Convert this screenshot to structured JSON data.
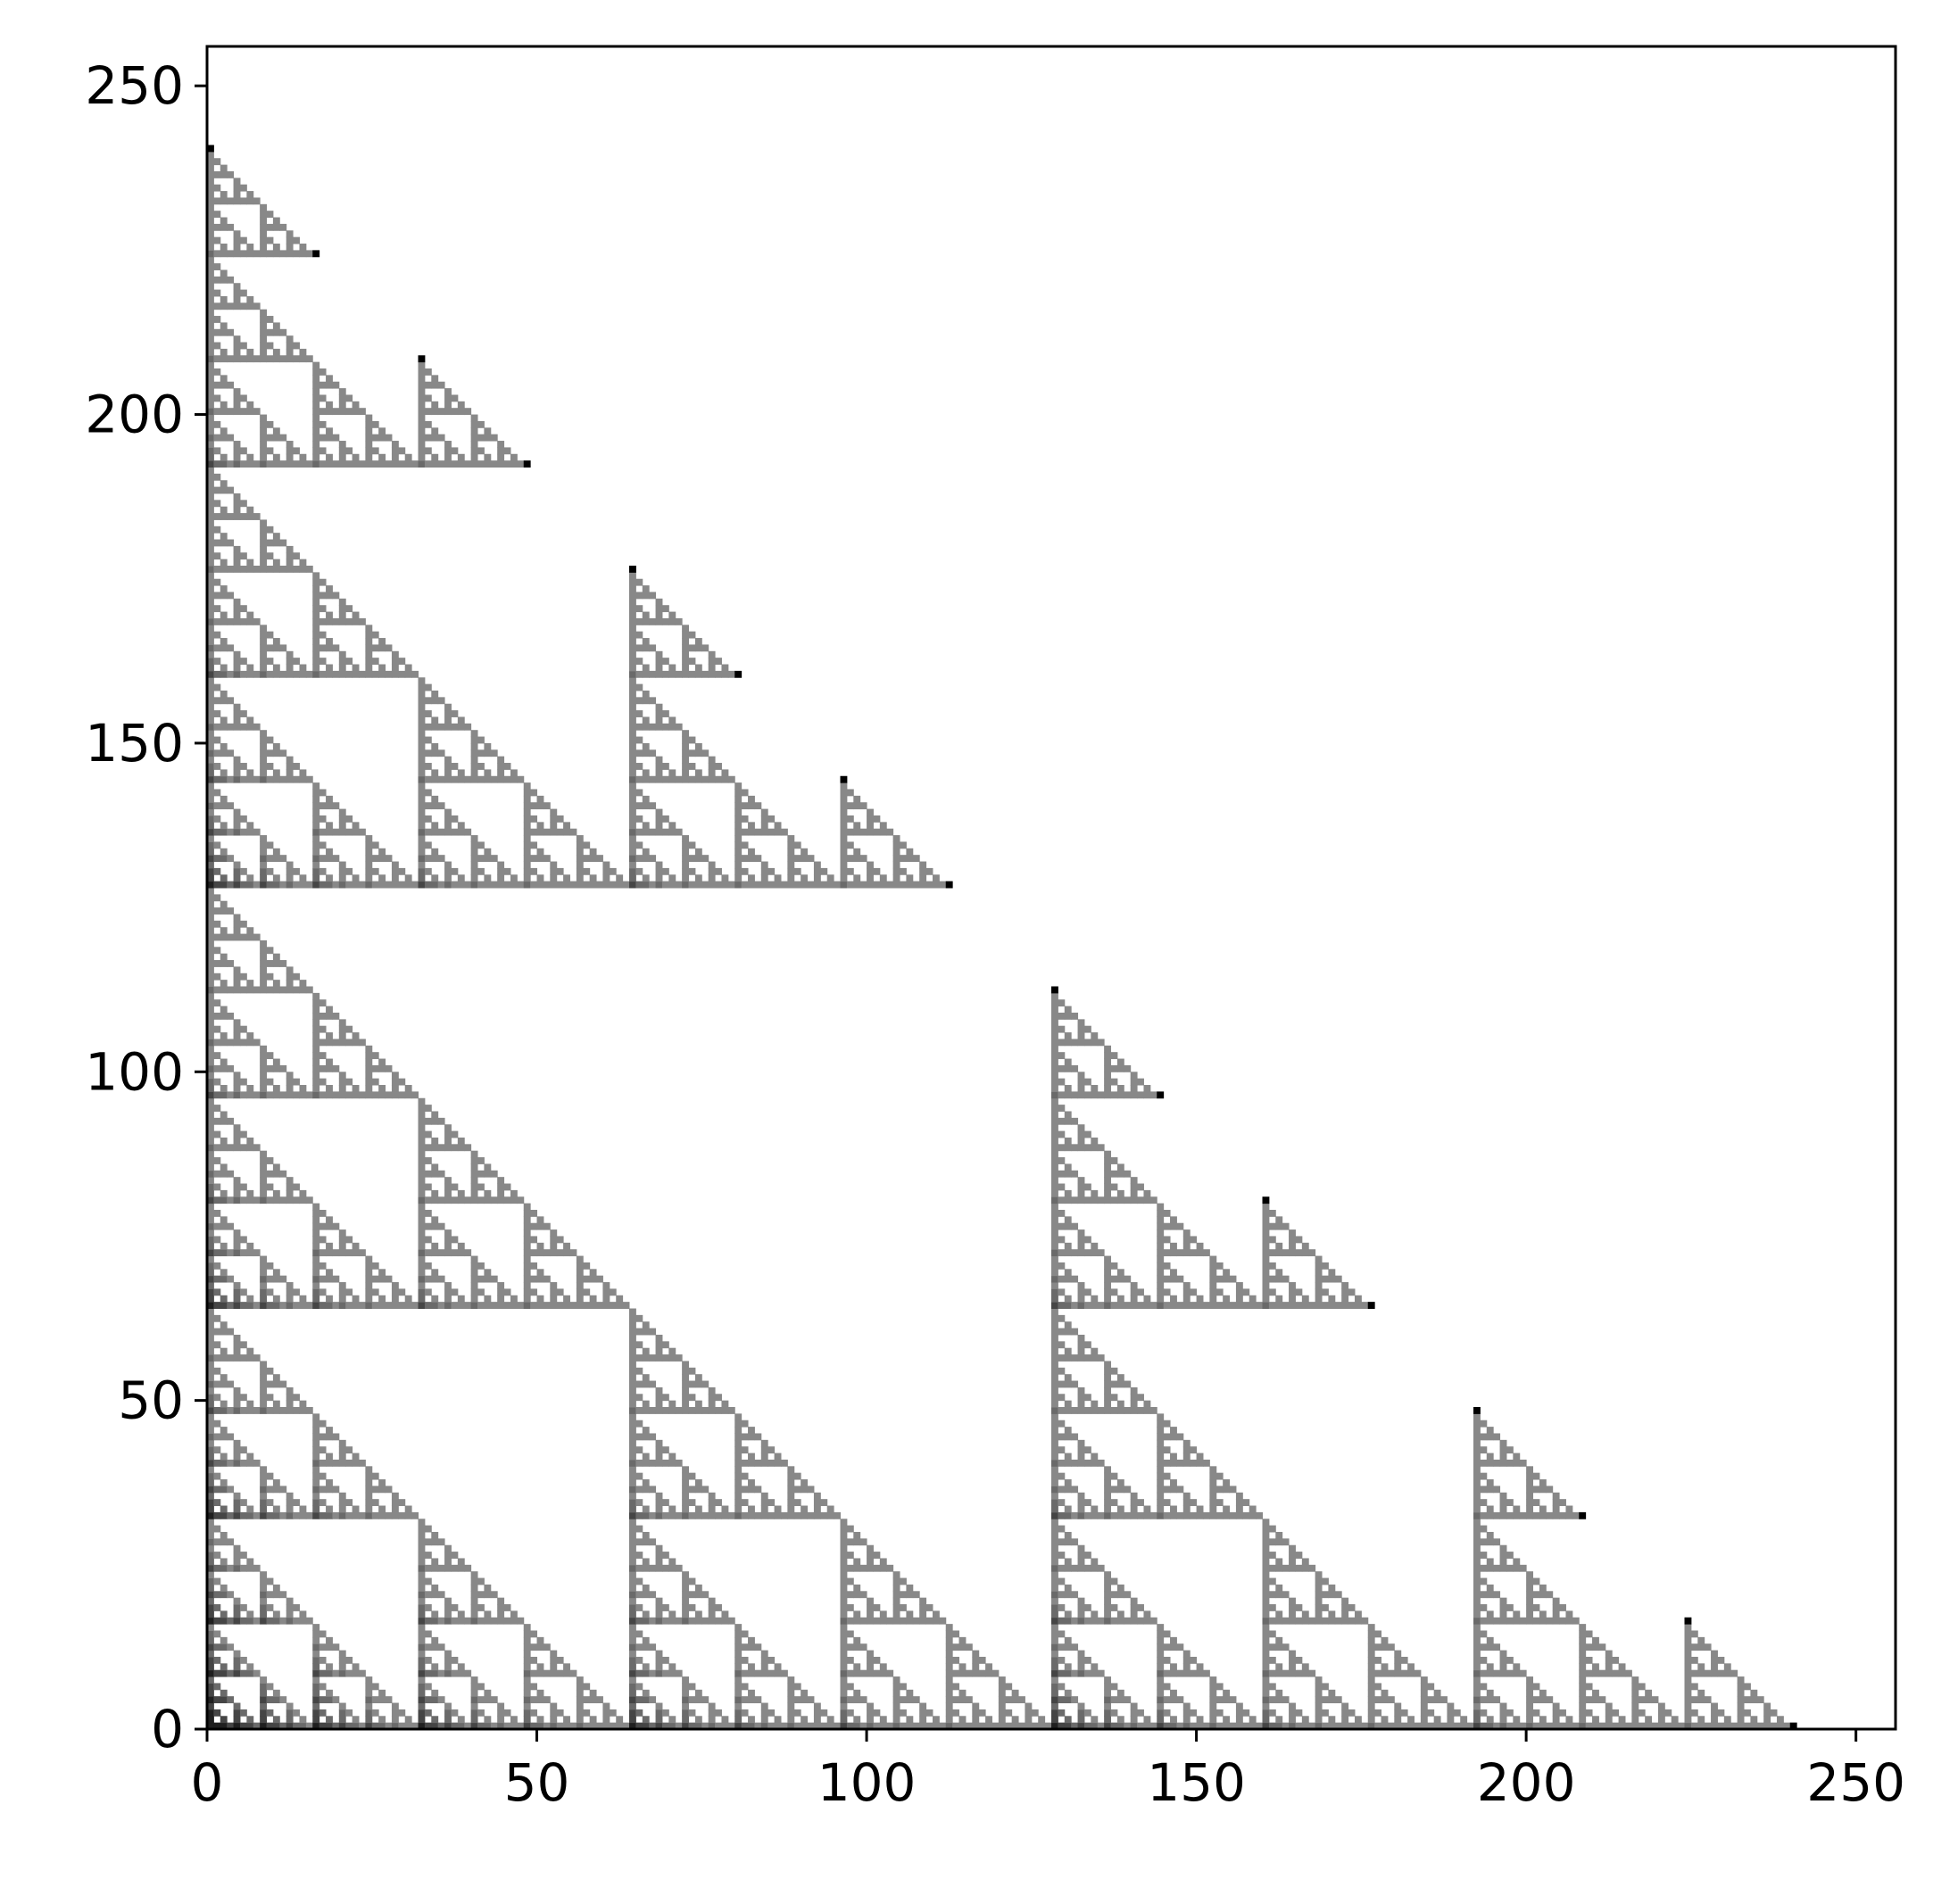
{
  "chart_data": {
    "type": "heatmap",
    "title": "",
    "xlabel": "",
    "ylabel": "",
    "xlim": [
      0,
      256
    ],
    "ylim": [
      0,
      256
    ],
    "x_ticks": [
      0,
      50,
      100,
      150,
      200,
      250
    ],
    "y_ticks": [
      0,
      50,
      100,
      150,
      200,
      250
    ],
    "x_tick_labels": [
      "0",
      "50",
      "100",
      "150",
      "200",
      "250"
    ],
    "y_tick_labels": [
      "0",
      "50",
      "100",
      "150",
      "200",
      "250"
    ],
    "grid": false,
    "legend": "none",
    "colormap": "grayscale",
    "values_note": "",
    "shade_levels": {
      "level_1": "#000000",
      "level_2": "#1f1f1f",
      "level_3": "#454545",
      "level_4": "#6a6a6a",
      "level_5": "#888888",
      "background": "#ffffff"
    },
    "pattern": "Recursive triangular structure; for each row y, filled cells satisfy (y & x) == 0 pattern with shading by popcount of remaining bits"
  }
}
